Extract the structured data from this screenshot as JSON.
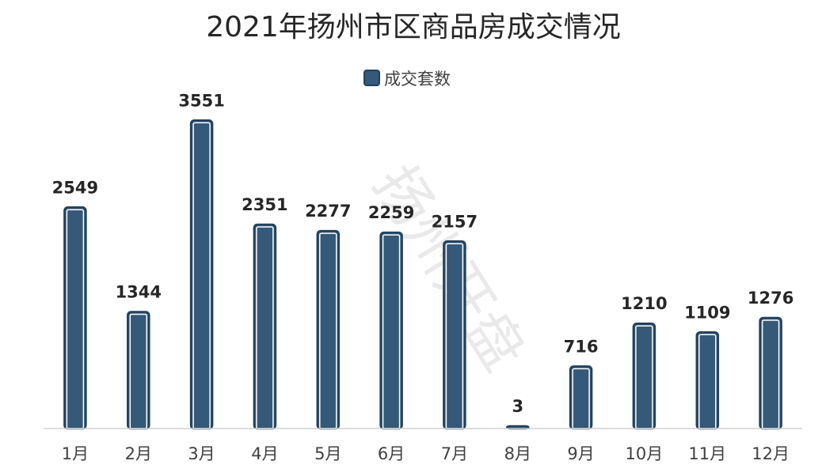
{
  "chart_data": {
    "type": "bar",
    "title": "2021年扬州市区商品房成交情况",
    "categories": [
      "1月",
      "2月",
      "3月",
      "4月",
      "5月",
      "6月",
      "7月",
      "8月",
      "9月",
      "10月",
      "11月",
      "12月"
    ],
    "series": [
      {
        "name": "成交套数",
        "values": [
          2549,
          1344,
          3551,
          2351,
          2277,
          2259,
          2157,
          3,
          716,
          1210,
          1109,
          1276
        ],
        "color": "#355978",
        "outline": "#22415c"
      }
    ],
    "ylim": [
      0,
      3800
    ],
    "grid": false,
    "legend": "top-center",
    "data_labels": true
  },
  "watermark": "扬州开盘"
}
